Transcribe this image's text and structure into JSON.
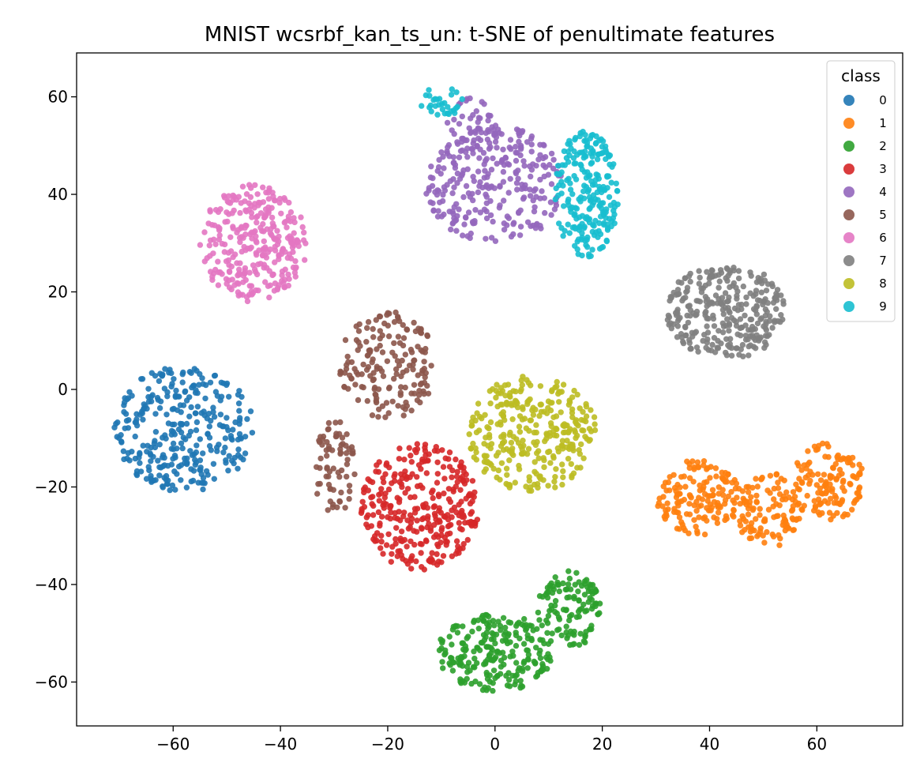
{
  "chart_data": {
    "type": "scatter",
    "title": "MNIST wcsrbf_kan_ts_un: t-SNE of penultimate features",
    "xlabel": "",
    "ylabel": "",
    "xlim": [
      -78,
      76
    ],
    "ylim": [
      -69,
      69
    ],
    "x_ticks": [
      -60,
      -40,
      -20,
      0,
      20,
      40,
      60
    ],
    "y_ticks": [
      -60,
      -40,
      -20,
      0,
      20,
      40,
      60
    ],
    "x_tick_labels": [
      "−60",
      "−40",
      "−20",
      "0",
      "20",
      "40",
      "60"
    ],
    "y_tick_labels": [
      "−60",
      "−40",
      "−20",
      "0",
      "20",
      "40",
      "60"
    ],
    "grid": false,
    "legend": {
      "title": "class",
      "position": "top-right"
    },
    "series": [
      {
        "name": "0",
        "color": "#1f77b4",
        "clusters": [
          {
            "cx": -58,
            "cy": -8,
            "rx": 13,
            "ry": 13,
            "n": 310
          }
        ]
      },
      {
        "name": "1",
        "color": "#ff7f0e",
        "clusters": [
          {
            "cx": 38,
            "cy": -22,
            "rx": 8,
            "ry": 8,
            "n": 150
          },
          {
            "cx": 51,
            "cy": -25,
            "rx": 6,
            "ry": 8,
            "n": 110
          },
          {
            "cx": 62,
            "cy": -19,
            "rx": 7,
            "ry": 8,
            "n": 130
          }
        ]
      },
      {
        "name": "2",
        "color": "#2ca02c",
        "clusters": [
          {
            "cx": 0,
            "cy": -54,
            "rx": 11,
            "ry": 8,
            "n": 230
          },
          {
            "cx": 14,
            "cy": -45,
            "rx": 6,
            "ry": 8,
            "n": 120
          }
        ]
      },
      {
        "name": "3",
        "color": "#d62728",
        "clusters": [
          {
            "cx": -14,
            "cy": -24,
            "rx": 11,
            "ry": 13,
            "n": 320
          }
        ]
      },
      {
        "name": "4",
        "color": "#9467bd",
        "clusters": [
          {
            "cx": 0,
            "cy": 42,
            "rx": 13,
            "ry": 12,
            "n": 280
          },
          {
            "cx": -4,
            "cy": 54,
            "rx": 5,
            "ry": 6,
            "n": 40
          }
        ]
      },
      {
        "name": "5",
        "color": "#8c564b",
        "clusters": [
          {
            "cx": -20,
            "cy": 5,
            "rx": 9,
            "ry": 11,
            "n": 170
          },
          {
            "cx": -30,
            "cy": -16,
            "rx": 4,
            "ry": 10,
            "n": 70
          }
        ]
      },
      {
        "name": "6",
        "color": "#e377c2",
        "clusters": [
          {
            "cx": -45,
            "cy": 30,
            "rx": 10,
            "ry": 12,
            "n": 300
          }
        ]
      },
      {
        "name": "7",
        "color": "#7f7f7f",
        "clusters": [
          {
            "cx": 43,
            "cy": 16,
            "rx": 11,
            "ry": 10,
            "n": 300
          }
        ]
      },
      {
        "name": "8",
        "color": "#bcbd22",
        "clusters": [
          {
            "cx": 7,
            "cy": -9,
            "rx": 12,
            "ry": 12,
            "n": 310
          }
        ]
      },
      {
        "name": "9",
        "color": "#17becf",
        "clusters": [
          {
            "cx": 17,
            "cy": 40,
            "rx": 6,
            "ry": 13,
            "n": 230
          },
          {
            "cx": -10,
            "cy": 59,
            "rx": 4,
            "ry": 3,
            "n": 30
          }
        ]
      }
    ]
  }
}
